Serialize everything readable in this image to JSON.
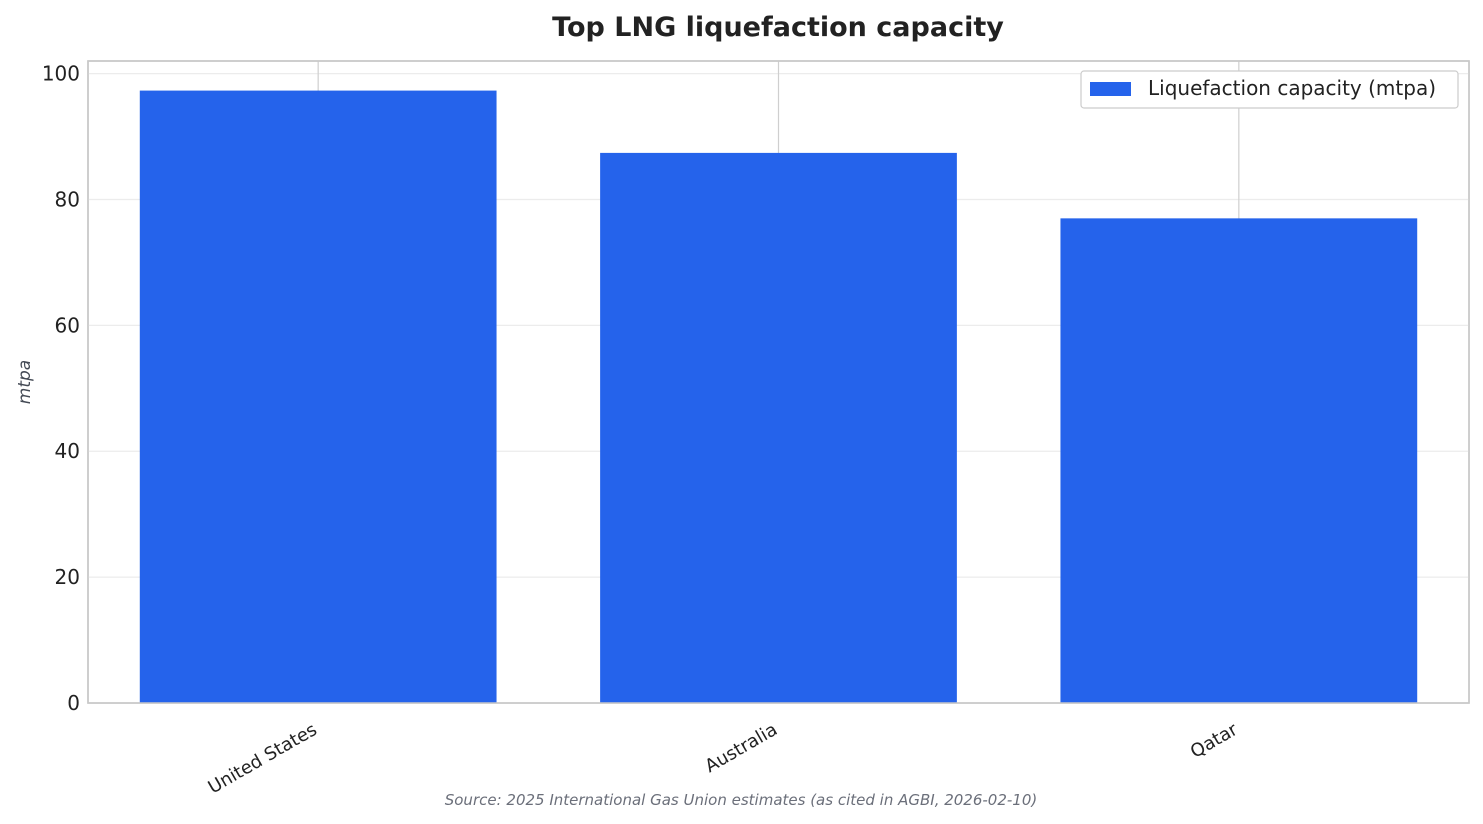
{
  "chart_data": {
    "type": "bar",
    "title": "Top LNG liquefaction capacity",
    "categories": [
      "United States",
      "Australia",
      "Qatar"
    ],
    "series": [
      {
        "name": "Liquefaction capacity (mtpa)",
        "values": [
          97.3,
          87.4,
          77.0
        ],
        "color": "#2563eb"
      }
    ],
    "xlabel": "",
    "ylabel": "mtpa",
    "ylim": [
      0,
      102
    ],
    "yticks": [
      "0",
      "20",
      "40",
      "60",
      "80",
      "100"
    ],
    "grid": true,
    "legend_position": "top-right",
    "source": "Source: 2025 International Gas Union estimates (as cited in AGBI, 2026-02-10)"
  }
}
